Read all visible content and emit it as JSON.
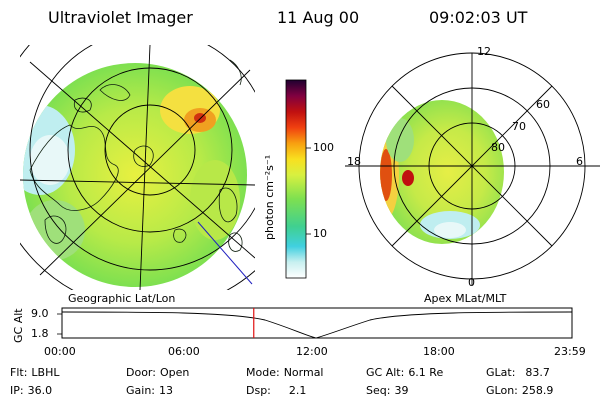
{
  "header": {
    "title": "Ultraviolet Imager",
    "date": "11 Aug 00",
    "time": "09:02:03 UT"
  },
  "colorbar": {
    "unit_label": "photon cm⁻²s⁻¹",
    "ticks": [
      "100",
      "10"
    ]
  },
  "left_panel": {
    "label": "Geographic Lat/Lon"
  },
  "right_panel": {
    "label": "Apex MLat/MLT",
    "mlt_labels": [
      "12",
      "18",
      "6",
      "0"
    ],
    "lat_labels": [
      "60",
      "70",
      "80"
    ]
  },
  "timeline": {
    "ylabel": "GC Alt",
    "y_ticks": [
      "9.0",
      "1.8"
    ],
    "x_ticks": [
      "00:00",
      "06:00",
      "12:00",
      "18:00",
      "23:59"
    ],
    "current_time_fraction": 0.376
  },
  "info": {
    "flt_label": "Flt:",
    "flt_value": "LBHL",
    "ip_label": "IP:",
    "ip_value": "36.0",
    "door_label": "Door:",
    "door_value": "Open",
    "gain_label": "Gain:",
    "gain_value": "13",
    "mode_label": "Mode:",
    "mode_value": "Normal",
    "dsp_label": "Dsp:",
    "dsp_value": "2.1",
    "gcalt_label": "GC Alt:",
    "gcalt_value": "6.1 Re",
    "seq_label": "Seq:",
    "seq_value": "39",
    "glat_label": "GLat:",
    "glat_value": "83.7",
    "glon_label": "GLon:",
    "glon_value": "258.9"
  },
  "colors": {
    "green": "#8ee04a",
    "yellow": "#f2f24a",
    "cyan": "#5ed6e0",
    "orange": "#f2a020",
    "red": "#d01010",
    "marker": "#e01010"
  }
}
